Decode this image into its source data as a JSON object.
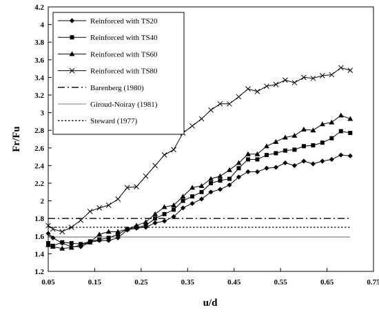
{
  "chart_data": {
    "type": "line",
    "xlabel": "u/d",
    "ylabel": "Fr/Fu",
    "xlim": [
      0.05,
      0.75
    ],
    "ylim": [
      1.2,
      4.2
    ],
    "xticks": [
      "0.05",
      "0.15",
      "0.25",
      "0.35",
      "0.45",
      "0.55",
      "0.65",
      "0.75"
    ],
    "yticks": [
      "1.2",
      "1.4",
      "1.6",
      "1.8",
      "2",
      "2.2",
      "2.4",
      "2.6",
      "2.8",
      "3",
      "3.2",
      "3.4",
      "3.6",
      "3.8",
      "4",
      "4.2"
    ],
    "grid": false,
    "legend_position": "top-left",
    "series": [
      {
        "name": "Reinforced with TS20",
        "marker": "diamond",
        "line": "solid",
        "x": [
          0.05,
          0.06,
          0.08,
          0.1,
          0.12,
          0.14,
          0.16,
          0.18,
          0.2,
          0.22,
          0.24,
          0.26,
          0.28,
          0.3,
          0.32,
          0.34,
          0.36,
          0.38,
          0.4,
          0.42,
          0.44,
          0.46,
          0.48,
          0.5,
          0.52,
          0.54,
          0.56,
          0.58,
          0.6,
          0.62,
          0.64,
          0.66,
          0.68,
          0.7
        ],
        "y": [
          1.63,
          1.58,
          1.52,
          1.48,
          1.48,
          1.53,
          1.55,
          1.55,
          1.58,
          1.67,
          1.69,
          1.7,
          1.75,
          1.77,
          1.82,
          1.92,
          1.97,
          2.02,
          2.1,
          2.13,
          2.18,
          2.27,
          2.33,
          2.33,
          2.37,
          2.38,
          2.43,
          2.4,
          2.45,
          2.42,
          2.45,
          2.47,
          2.52,
          2.51
        ]
      },
      {
        "name": "Reinforced with TS40",
        "marker": "square",
        "line": "solid",
        "x": [
          0.05,
          0.06,
          0.08,
          0.1,
          0.12,
          0.14,
          0.16,
          0.18,
          0.2,
          0.22,
          0.24,
          0.26,
          0.28,
          0.3,
          0.32,
          0.34,
          0.36,
          0.38,
          0.4,
          0.42,
          0.44,
          0.46,
          0.48,
          0.5,
          0.52,
          0.54,
          0.56,
          0.58,
          0.6,
          0.62,
          0.64,
          0.66,
          0.68,
          0.7
        ],
        "y": [
          1.52,
          1.49,
          1.53,
          1.52,
          1.51,
          1.54,
          1.56,
          1.58,
          1.62,
          1.68,
          1.7,
          1.72,
          1.8,
          1.85,
          1.9,
          2.0,
          2.05,
          2.1,
          2.2,
          2.23,
          2.25,
          2.37,
          2.47,
          2.47,
          2.52,
          2.54,
          2.57,
          2.58,
          2.62,
          2.63,
          2.66,
          2.71,
          2.79,
          2.77
        ]
      },
      {
        "name": "Reinforced with TS60",
        "marker": "triangle",
        "line": "solid",
        "x": [
          0.05,
          0.06,
          0.08,
          0.1,
          0.12,
          0.14,
          0.16,
          0.18,
          0.2,
          0.22,
          0.24,
          0.26,
          0.28,
          0.3,
          0.32,
          0.34,
          0.36,
          0.38,
          0.4,
          0.42,
          0.44,
          0.46,
          0.48,
          0.5,
          0.52,
          0.54,
          0.56,
          0.58,
          0.6,
          0.62,
          0.64,
          0.66,
          0.68,
          0.7
        ],
        "y": [
          1.5,
          1.48,
          1.46,
          1.47,
          1.5,
          1.53,
          1.62,
          1.65,
          1.65,
          1.68,
          1.72,
          1.76,
          1.85,
          1.93,
          1.95,
          2.05,
          2.15,
          2.17,
          2.25,
          2.28,
          2.35,
          2.43,
          2.53,
          2.53,
          2.62,
          2.67,
          2.72,
          2.74,
          2.81,
          2.8,
          2.87,
          2.89,
          2.97,
          2.93
        ]
      },
      {
        "name": "Reinforced with TS80",
        "marker": "x",
        "line": "solid",
        "x": [
          0.05,
          0.06,
          0.08,
          0.1,
          0.12,
          0.14,
          0.16,
          0.18,
          0.2,
          0.22,
          0.24,
          0.26,
          0.28,
          0.3,
          0.32,
          0.34,
          0.36,
          0.38,
          0.4,
          0.42,
          0.44,
          0.46,
          0.48,
          0.5,
          0.52,
          0.54,
          0.56,
          0.58,
          0.6,
          0.62,
          0.64,
          0.66,
          0.68,
          0.7
        ],
        "y": [
          1.72,
          1.68,
          1.65,
          1.7,
          1.78,
          1.88,
          1.92,
          1.95,
          2.02,
          2.15,
          2.16,
          2.28,
          2.4,
          2.52,
          2.58,
          2.77,
          2.85,
          2.93,
          3.03,
          3.1,
          3.1,
          3.18,
          3.27,
          3.24,
          3.3,
          3.32,
          3.37,
          3.34,
          3.4,
          3.39,
          3.42,
          3.43,
          3.51,
          3.48
        ]
      },
      {
        "name": "Barenberg (1980)",
        "line": "dash-dot",
        "x": [
          0.05,
          0.7
        ],
        "y": [
          1.8,
          1.8
        ]
      },
      {
        "name": "Giroud-Noiray (1981)",
        "line": "thin-solid",
        "x": [
          0.05,
          0.7
        ],
        "y": [
          1.59,
          1.59
        ]
      },
      {
        "name": "Steward (1977)",
        "line": "dotted",
        "x": [
          0.05,
          0.7
        ],
        "y": [
          1.7,
          1.7
        ]
      }
    ]
  }
}
